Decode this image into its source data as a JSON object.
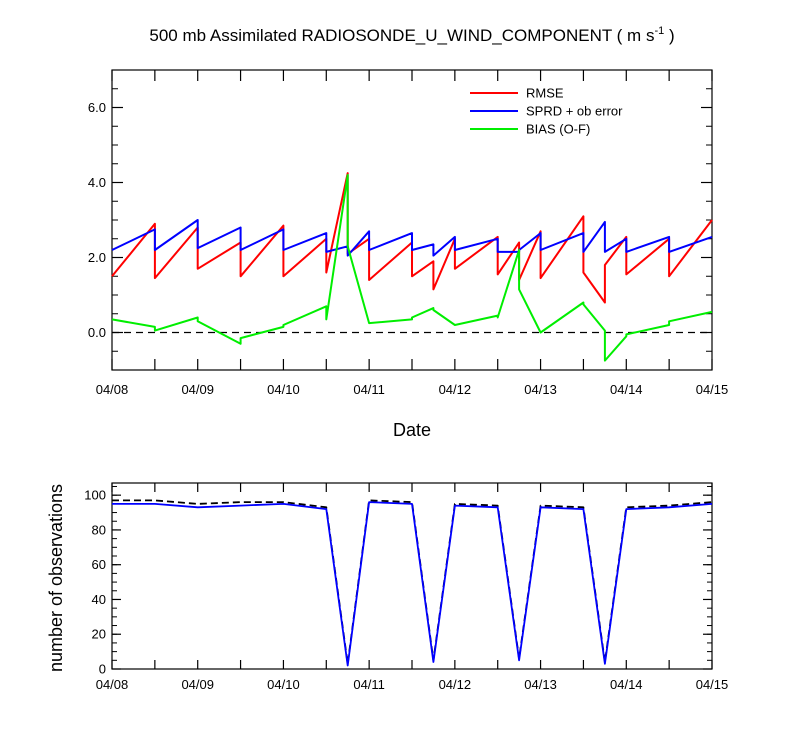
{
  "chart_data": [
    {
      "type": "line",
      "title_main": "500 mb Assimilated RADIOSONDE_U_WIND_COMPONENT ( m s",
      "title_sup": "-1",
      "title_end": " )",
      "xlabel": "Date",
      "ylabel": "",
      "x_ticks": [
        "04/08",
        "04/09",
        "04/10",
        "04/11",
        "04/12",
        "04/13",
        "04/14",
        "04/15"
      ],
      "x_range": [
        0,
        7
      ],
      "ylim": [
        -1,
        7
      ],
      "y_ticks": [
        0,
        2,
        4,
        6
      ],
      "y_tick_labels": [
        "0.0",
        "2.0",
        "4.0",
        "6.0"
      ],
      "zero_reference_line": true,
      "legend_position": "top-right",
      "colors": {
        "RMSE": "#ff0000",
        "SPRD + ob error": "#0000ff",
        "BIAS (O-F)": "#00ee00"
      },
      "series": [
        {
          "name": "RMSE",
          "color": "#ff0000",
          "x": [
            0,
            0.5,
            0.5,
            1,
            1,
            1.5,
            1.5,
            2,
            2,
            2.5,
            2.5,
            2.75,
            2.75,
            3,
            3,
            3.5,
            3.5,
            3.75,
            3.75,
            4,
            4,
            4.5,
            4.5,
            4.75,
            4.75,
            5,
            5,
            5.5,
            5.5,
            5.75,
            5.75,
            6,
            6,
            6.5,
            6.5,
            7
          ],
          "y": [
            1.5,
            2.9,
            1.45,
            2.8,
            1.7,
            2.4,
            1.5,
            2.85,
            1.5,
            2.5,
            1.6,
            4.25,
            2.1,
            2.5,
            1.4,
            2.4,
            1.5,
            1.9,
            1.15,
            2.5,
            1.7,
            2.55,
            1.55,
            2.4,
            1.4,
            2.7,
            1.45,
            3.1,
            1.6,
            0.8,
            1.8,
            2.55,
            1.55,
            2.5,
            1.5,
            3.0
          ]
        },
        {
          "name": "SPRD + ob error",
          "color": "#0000ff",
          "x": [
            0,
            0.5,
            0.5,
            1,
            1,
            1.5,
            1.5,
            2,
            2,
            2.5,
            2.5,
            2.75,
            2.75,
            3,
            3,
            3.5,
            3.5,
            3.75,
            3.75,
            4,
            4,
            4.5,
            4.5,
            4.75,
            4.75,
            5,
            5,
            5.5,
            5.5,
            5.75,
            5.75,
            6,
            6,
            6.5,
            6.5,
            7
          ],
          "y": [
            2.2,
            2.75,
            2.2,
            3.0,
            2.25,
            2.8,
            2.2,
            2.75,
            2.2,
            2.65,
            2.15,
            2.3,
            2.05,
            2.7,
            2.2,
            2.65,
            2.2,
            2.35,
            2.05,
            2.55,
            2.2,
            2.5,
            2.15,
            2.15,
            2.2,
            2.65,
            2.2,
            2.65,
            2.15,
            2.95,
            2.15,
            2.5,
            2.15,
            2.55,
            2.15,
            2.55
          ]
        },
        {
          "name": "BIAS (O-F)",
          "color": "#00ee00",
          "x": [
            0,
            0.5,
            0.5,
            1,
            1,
            1.5,
            1.5,
            2,
            2,
            2.5,
            2.5,
            2.75,
            2.75,
            3,
            3,
            3.5,
            3.5,
            3.75,
            3.75,
            4,
            4,
            4.5,
            4.5,
            4.75,
            4.75,
            5,
            5,
            5.5,
            5.5,
            5.75,
            5.75,
            6,
            6,
            6.5,
            6.5,
            7
          ],
          "y": [
            0.35,
            0.15,
            0.05,
            0.4,
            0.3,
            -0.3,
            -0.15,
            0.15,
            0.2,
            0.7,
            0.35,
            4.2,
            2.3,
            0.25,
            0.25,
            0.35,
            0.4,
            0.65,
            0.6,
            0.2,
            0.2,
            0.45,
            0.4,
            2.2,
            1.15,
            0.0,
            0.0,
            0.8,
            0.75,
            0.05,
            -0.75,
            -0.1,
            -0.05,
            0.2,
            0.3,
            0.55
          ]
        }
      ]
    },
    {
      "type": "line",
      "title": "",
      "xlabel": "",
      "ylabel": "number of observations",
      "x_ticks": [
        "04/08",
        "04/09",
        "04/10",
        "04/11",
        "04/12",
        "04/13",
        "04/14",
        "04/15"
      ],
      "x_range": [
        0,
        7
      ],
      "ylim": [
        0,
        107
      ],
      "y_ticks": [
        0,
        20,
        40,
        60,
        80,
        100
      ],
      "y_tick_labels": [
        "0",
        "20",
        "40",
        "60",
        "80",
        "100"
      ],
      "series": [
        {
          "color": "#000000",
          "dashed": true,
          "x": [
            0,
            0.5,
            1,
            1.5,
            2,
            2.5,
            2.75,
            3,
            3.5,
            3.75,
            4,
            4.5,
            4.75,
            5,
            5.5,
            5.75,
            6,
            6.5,
            7
          ],
          "y": [
            97,
            97,
            95,
            96,
            96,
            93,
            3,
            97,
            96,
            5,
            95,
            94,
            6,
            94,
            93,
            4,
            93,
            94,
            96
          ]
        },
        {
          "color": "#0000ff",
          "dashed": false,
          "x": [
            0,
            0.5,
            1,
            1.5,
            2,
            2.5,
            2.75,
            3,
            3.5,
            3.75,
            4,
            4.5,
            4.75,
            5,
            5.5,
            5.75,
            6,
            6.5,
            7
          ],
          "y": [
            95,
            95,
            93,
            94,
            95,
            92,
            2,
            96,
            95,
            4,
            94,
            93,
            5,
            93,
            92,
            3,
            92,
            93,
            95
          ]
        }
      ]
    }
  ]
}
